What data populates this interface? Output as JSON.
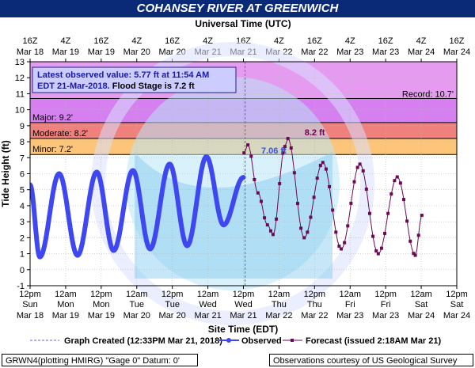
{
  "title": "COHANSEY RIVER AT GREENWICH",
  "chart_data": {
    "type": "line",
    "top_axis_title": "Universal Time (UTC)",
    "top_ticks": [
      {
        "t": "16Z",
        "d": "Mar 18"
      },
      {
        "t": "4Z",
        "d": "Mar 19"
      },
      {
        "t": "16Z",
        "d": "Mar 19"
      },
      {
        "t": "4Z",
        "d": "Mar 20"
      },
      {
        "t": "16Z",
        "d": "Mar 20"
      },
      {
        "t": "4Z",
        "d": "Mar 21"
      },
      {
        "t": "16Z",
        "d": "Mar 21"
      },
      {
        "t": "4Z",
        "d": "Mar 22"
      },
      {
        "t": "16Z",
        "d": "Mar 22"
      },
      {
        "t": "4Z",
        "d": "Mar 23"
      },
      {
        "t": "16Z",
        "d": "Mar 23"
      },
      {
        "t": "4Z",
        "d": "Mar 24"
      },
      {
        "t": "16Z",
        "d": "Mar 24"
      }
    ],
    "bottom_axis_title": "Site Time (EDT)",
    "bottom_ticks": [
      {
        "t": "12pm",
        "w": "Sun",
        "d": "Mar 18"
      },
      {
        "t": "12am",
        "w": "Mon",
        "d": "Mar 19"
      },
      {
        "t": "12pm",
        "w": "Mon",
        "d": "Mar 19"
      },
      {
        "t": "12am",
        "w": "Tue",
        "d": "Mar 20"
      },
      {
        "t": "12pm",
        "w": "Tue",
        "d": "Mar 20"
      },
      {
        "t": "12am",
        "w": "Wed",
        "d": "Mar 21"
      },
      {
        "t": "12pm",
        "w": "Wed",
        "d": "Mar 21"
      },
      {
        "t": "12am",
        "w": "Thu",
        "d": "Mar 22"
      },
      {
        "t": "12pm",
        "w": "Thu",
        "d": "Mar 22"
      },
      {
        "t": "12am",
        "w": "Fri",
        "d": "Mar 23"
      },
      {
        "t": "12pm",
        "w": "Fri",
        "d": "Mar 23"
      },
      {
        "t": "12am",
        "w": "Sat",
        "d": "Mar 24"
      },
      {
        "t": "12pm",
        "w": "Sat",
        "d": "Mar 24"
      }
    ],
    "ylabel": "Tide Height (ft)",
    "ylim": [
      -1,
      13
    ],
    "yticks": [
      -1,
      0,
      1,
      2,
      3,
      4,
      5,
      6,
      7,
      8,
      9,
      10,
      11,
      12,
      13
    ],
    "x_range_hours": [
      0,
      144
    ],
    "grid": true,
    "flood_categories": [
      {
        "label": "Record: 10.7'",
        "value": 10.7,
        "color": "#e59cf0"
      },
      {
        "label": "Major: 9.2'",
        "value": 9.2,
        "color": "#d57ff0"
      },
      {
        "label": "Moderate: 8.2'",
        "value": 8.2,
        "color": "#f0807c"
      },
      {
        "label": "Minor: 7.2'",
        "value": 7.2,
        "color": "#fcc57a"
      }
    ],
    "info_box": {
      "line1": "Latest observed value: 5.77 ft at 11:54 AM",
      "line2a": "EDT 21-Mar-2018.",
      "line2b": " Flood Stage is 7.2 ft"
    },
    "annotations": [
      {
        "text": "7.06 ft",
        "x": 86.5,
        "y": 7.06,
        "color": "#3355dd"
      },
      {
        "text": "8.2 ft",
        "x": 99.5,
        "y": 8.2,
        "color": "#700050"
      }
    ],
    "graph_created_x": 72.55,
    "observed": {
      "name": "Observed",
      "color": "#3f48f0",
      "points": [
        [
          0,
          5.3
        ],
        [
          3.3,
          0.8
        ],
        [
          9.8,
          6.0
        ],
        [
          16,
          0.9
        ],
        [
          22.5,
          6.1
        ],
        [
          28.2,
          1.2
        ],
        [
          34.7,
          6.2
        ],
        [
          40.5,
          1.3
        ],
        [
          47.1,
          6.6
        ],
        [
          53,
          1.5
        ],
        [
          59.5,
          7.06
        ],
        [
          65.3,
          2.8
        ],
        [
          72,
          5.77
        ]
      ]
    },
    "forecast": {
      "name": "Forecast (issued 2:18AM Mar 21)",
      "color": "#6a0a55",
      "points": [
        [
          72.2,
          7.3
        ],
        [
          73.5,
          7.8
        ],
        [
          76.9,
          4.8
        ],
        [
          80.1,
          2.8
        ],
        [
          82,
          2.2
        ],
        [
          86,
          7.7
        ],
        [
          87,
          8.2
        ],
        [
          92.5,
          2.0
        ],
        [
          98.8,
          6.7
        ],
        [
          105,
          1.3
        ],
        [
          111.3,
          6.6
        ],
        [
          117.5,
          1.0
        ],
        [
          123.9,
          5.8
        ],
        [
          130,
          0.9
        ],
        [
          132.2,
          3.4
        ]
      ]
    },
    "legend": [
      {
        "kind": "dashed",
        "text": "Graph Created (12:33PM Mar 21, 2018)"
      },
      {
        "kind": "observed",
        "text": "Observed"
      },
      {
        "kind": "forecast",
        "text": "Forecast (issued 2:18AM Mar 21)"
      }
    ]
  },
  "footer": {
    "left": "GRWN4(plotting HMIRG) \"Gage 0\" Datum: 0'",
    "right": "Observations courtesy of US Geological Survey"
  }
}
